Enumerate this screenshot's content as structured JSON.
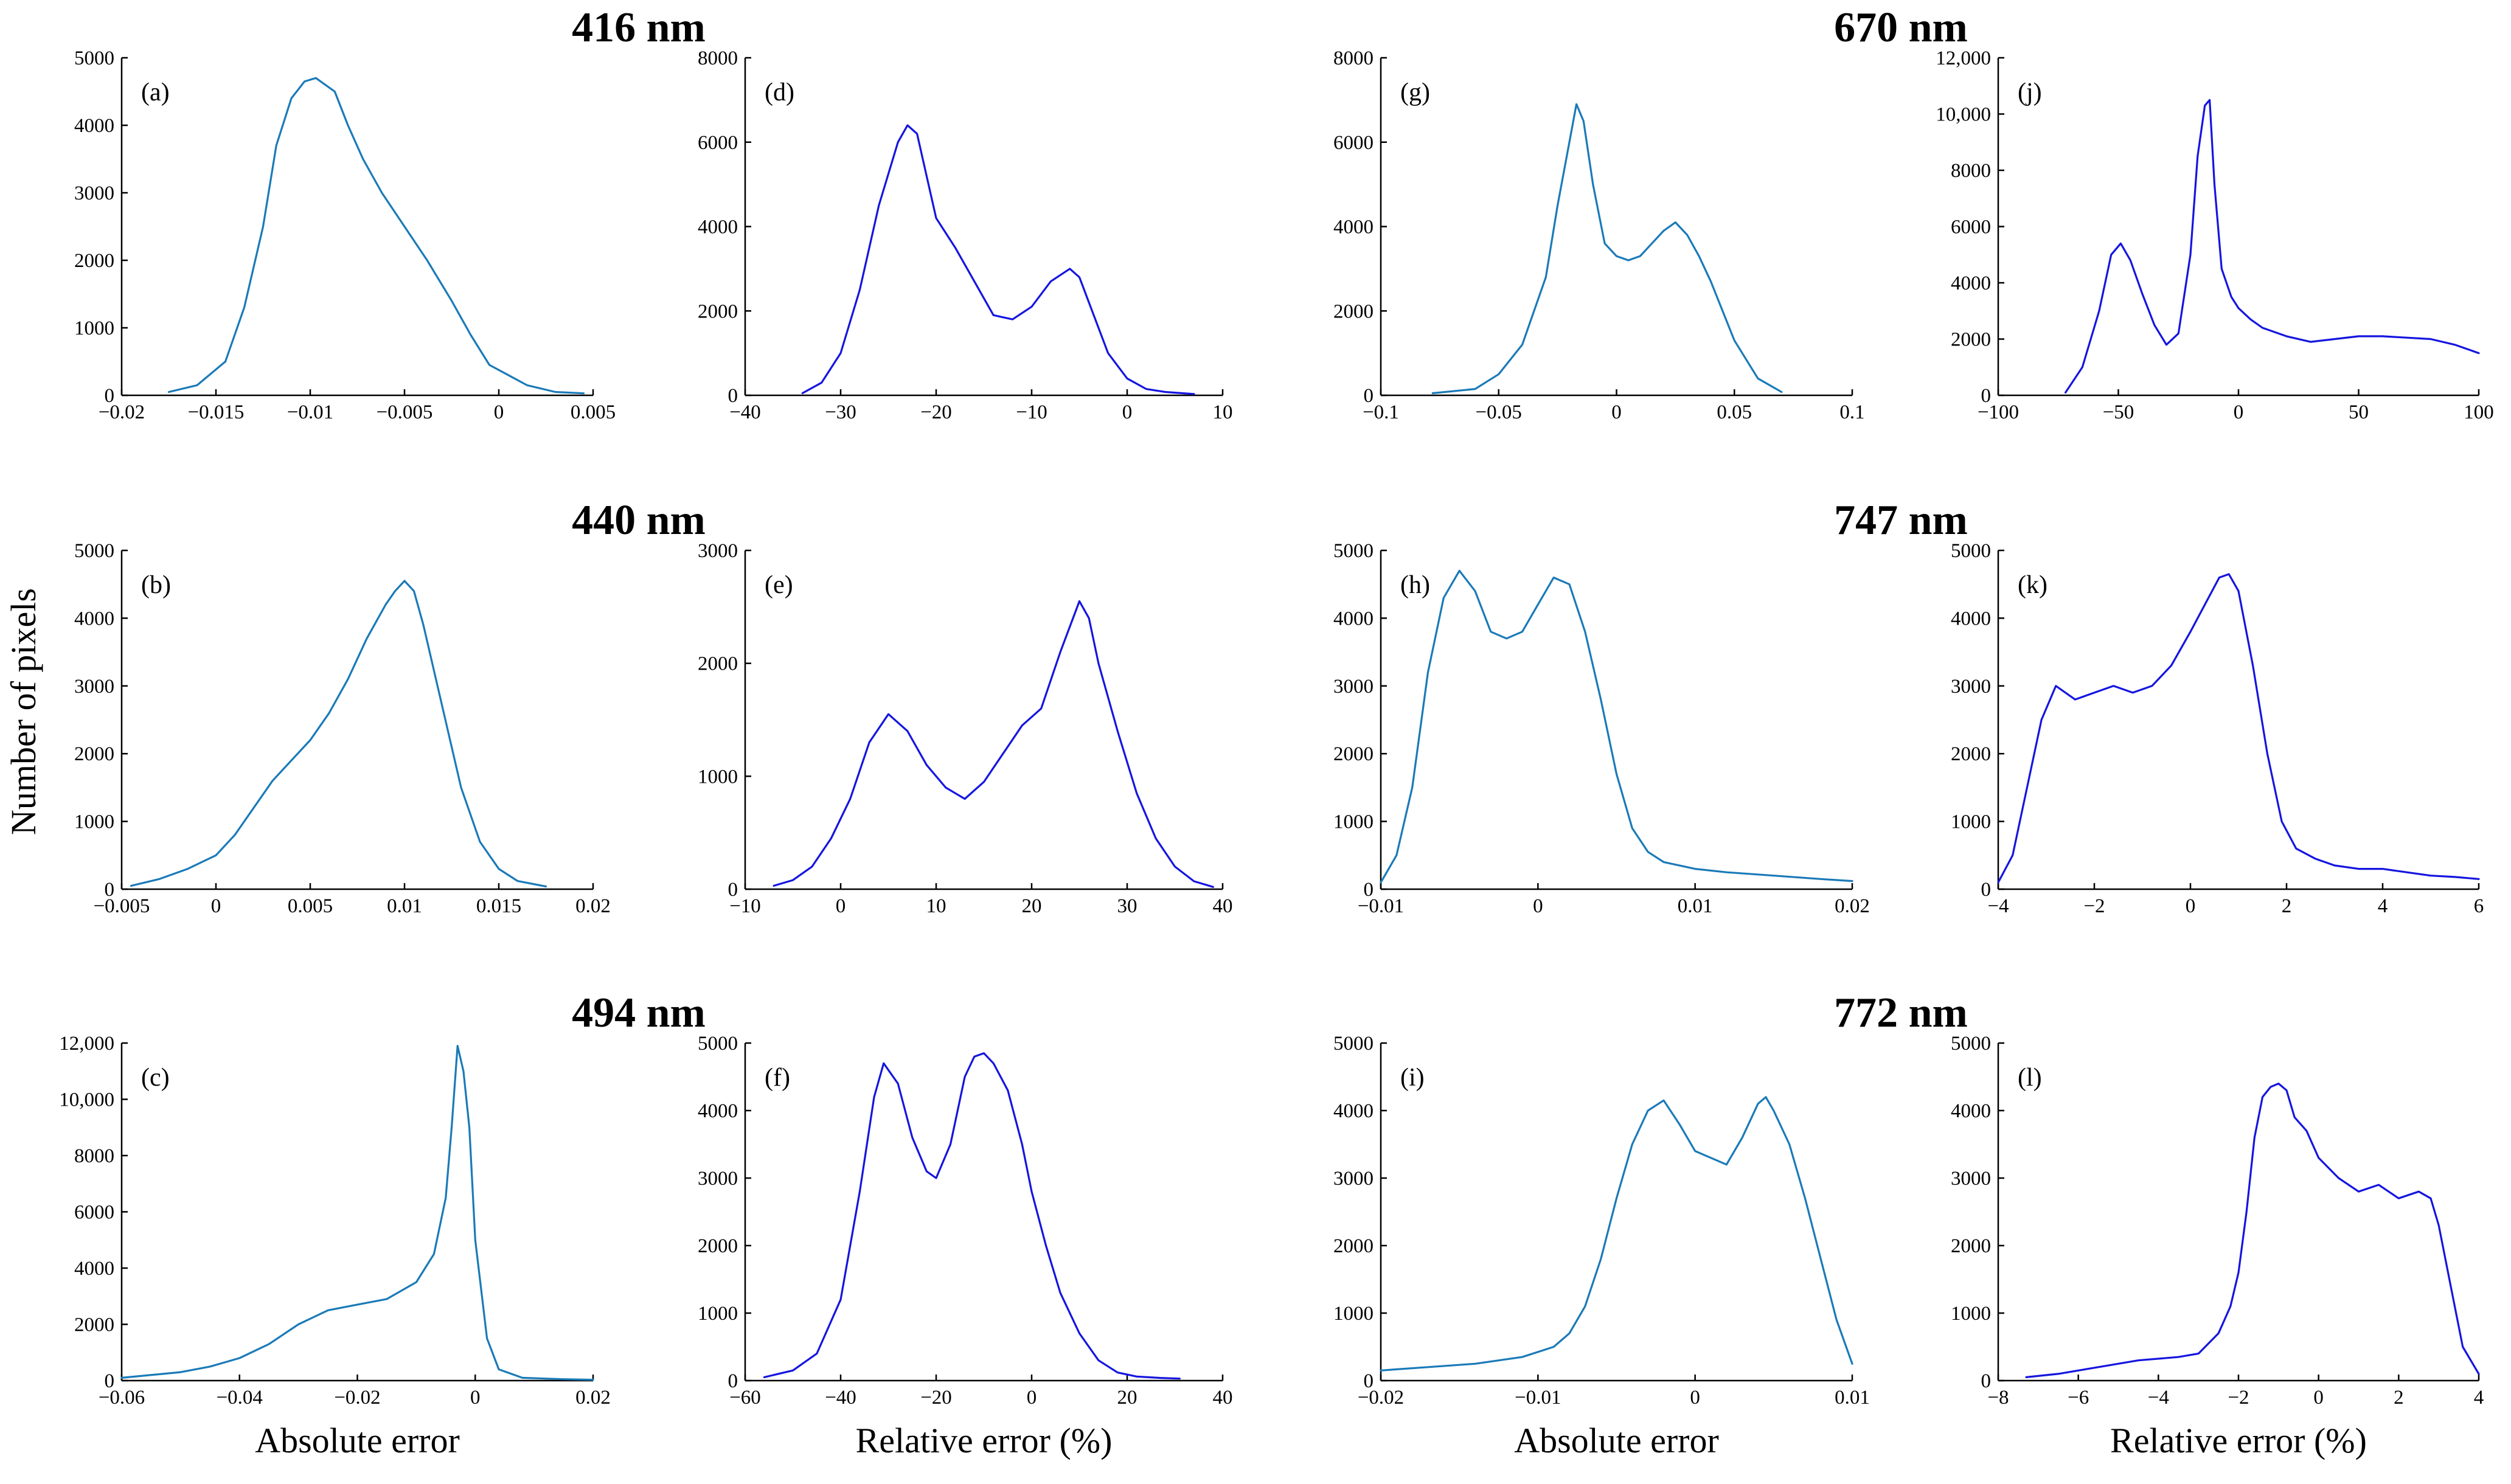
{
  "figure": {
    "ylabel": "Number of pixels",
    "wavelength_titles": [
      "416 nm",
      "440 nm",
      "494 nm",
      "670 nm",
      "747 nm",
      "772 nm"
    ],
    "colors": {
      "absolute": "#1a7ab8",
      "relative": "#1515e0"
    }
  },
  "chart_data": [
    {
      "id": "a",
      "type": "line",
      "label": "(a)",
      "wavelength": "416 nm",
      "xlabel": "",
      "ylabel": "Number of pixels",
      "xlim": [
        -0.02,
        0.005
      ],
      "ylim": [
        0,
        5000
      ],
      "xticks": [
        -0.02,
        -0.015,
        -0.01,
        -0.005,
        0,
        0.005
      ],
      "xticklabels": [
        "−0.02",
        "−0.015",
        "−0.01",
        "−0.005",
        "0",
        "0.005"
      ],
      "yticks": [
        0,
        1000,
        2000,
        3000,
        4000,
        5000
      ],
      "yticklabels": [
        "0",
        "1000",
        "2000",
        "3000",
        "4000",
        "5000"
      ],
      "series": "absolute",
      "x": [
        -0.0175,
        -0.016,
        -0.0145,
        -0.0135,
        -0.0125,
        -0.0118,
        -0.011,
        -0.0103,
        -0.0097,
        -0.0092,
        -0.0087,
        -0.008,
        -0.0072,
        -0.0062,
        -0.005,
        -0.0038,
        -0.0025,
        -0.0015,
        -0.0005,
        0.0005,
        0.0015,
        0.003,
        0.0045
      ],
      "values": [
        50,
        150,
        500,
        1300,
        2500,
        3700,
        4400,
        4650,
        4700,
        4600,
        4500,
        4000,
        3500,
        3000,
        2500,
        2000,
        1400,
        900,
        450,
        300,
        150,
        50,
        30
      ]
    },
    {
      "id": "b",
      "type": "line",
      "label": "(b)",
      "wavelength": "440 nm",
      "xlabel": "",
      "ylabel": "Number of pixels",
      "xlim": [
        -0.005,
        0.02
      ],
      "ylim": [
        0,
        5000
      ],
      "xticks": [
        -0.005,
        0,
        0.005,
        0.01,
        0.015,
        0.02
      ],
      "xticklabels": [
        "−0.005",
        "0",
        "0.005",
        "0.01",
        "0.015",
        "0.02"
      ],
      "yticks": [
        0,
        1000,
        2000,
        3000,
        4000,
        5000
      ],
      "yticklabels": [
        "0",
        "1000",
        "2000",
        "3000",
        "4000",
        "5000"
      ],
      "series": "absolute",
      "x": [
        -0.0045,
        -0.003,
        -0.0015,
        0,
        0.001,
        0.002,
        0.003,
        0.004,
        0.005,
        0.006,
        0.007,
        0.008,
        0.009,
        0.0095,
        0.01,
        0.0105,
        0.011,
        0.012,
        0.013,
        0.014,
        0.015,
        0.016,
        0.0175
      ],
      "values": [
        50,
        150,
        300,
        500,
        800,
        1200,
        1600,
        1900,
        2200,
        2600,
        3100,
        3700,
        4200,
        4400,
        4550,
        4400,
        3900,
        2700,
        1500,
        700,
        300,
        120,
        40
      ]
    },
    {
      "id": "c",
      "type": "line",
      "label": "(c)",
      "wavelength": "494 nm",
      "xlabel": "Absolute error",
      "ylabel": "Number of pixels",
      "xlim": [
        -0.06,
        0.02
      ],
      "ylim": [
        0,
        12000
      ],
      "xticks": [
        -0.06,
        -0.04,
        -0.02,
        0,
        0.02
      ],
      "xticklabels": [
        "−0.06",
        "−0.04",
        "−0.02",
        "0",
        "0.02"
      ],
      "yticks": [
        0,
        2000,
        4000,
        6000,
        8000,
        10000,
        12000
      ],
      "yticklabels": [
        "0",
        "2000",
        "4000",
        "6000",
        "8000",
        "10,000",
        "12,000"
      ],
      "series": "absolute",
      "x": [
        -0.06,
        -0.05,
        -0.045,
        -0.04,
        -0.035,
        -0.03,
        -0.025,
        -0.02,
        -0.015,
        -0.01,
        -0.007,
        -0.005,
        -0.004,
        -0.003,
        -0.002,
        -0.001,
        0,
        0.002,
        0.004,
        0.008,
        0.015,
        0.02
      ],
      "values": [
        100,
        300,
        500,
        800,
        1300,
        2000,
        2500,
        2700,
        2900,
        3500,
        4500,
        6500,
        9000,
        11900,
        11000,
        9000,
        5000,
        1500,
        400,
        100,
        50,
        30
      ]
    },
    {
      "id": "d",
      "type": "line",
      "label": "(d)",
      "wavelength": "416 nm",
      "xlabel": "",
      "ylabel": "",
      "xlim": [
        -40,
        10
      ],
      "ylim": [
        0,
        8000
      ],
      "xticks": [
        -40,
        -30,
        -20,
        -10,
        0,
        10
      ],
      "xticklabels": [
        "−40",
        "−30",
        "−20",
        "−10",
        "0",
        "10"
      ],
      "yticks": [
        0,
        2000,
        4000,
        6000,
        8000
      ],
      "yticklabels": [
        "0",
        "2000",
        "4000",
        "6000",
        "8000"
      ],
      "series": "relative",
      "x": [
        -34,
        -32,
        -30,
        -28,
        -26,
        -24,
        -23,
        -22,
        -21,
        -20,
        -18,
        -16,
        -14,
        -12,
        -10,
        -8,
        -6,
        -5,
        -4,
        -2,
        0,
        2,
        4,
        7
      ],
      "values": [
        50,
        300,
        1000,
        2500,
        4500,
        6000,
        6400,
        6200,
        5200,
        4200,
        3500,
        2700,
        1900,
        1800,
        2100,
        2700,
        3000,
        2800,
        2200,
        1000,
        400,
        150,
        80,
        30
      ]
    },
    {
      "id": "e",
      "type": "line",
      "label": "(e)",
      "wavelength": "440 nm",
      "xlabel": "",
      "ylabel": "",
      "xlim": [
        -10,
        40
      ],
      "ylim": [
        0,
        3000
      ],
      "xticks": [
        -10,
        0,
        10,
        20,
        30,
        40
      ],
      "xticklabels": [
        "−10",
        "0",
        "10",
        "20",
        "30",
        "40"
      ],
      "yticks": [
        0,
        1000,
        2000,
        3000
      ],
      "yticklabels": [
        "0",
        "1000",
        "2000",
        "3000"
      ],
      "series": "relative",
      "x": [
        -7,
        -5,
        -3,
        -1,
        1,
        3,
        5,
        7,
        9,
        11,
        13,
        15,
        17,
        19,
        21,
        23,
        25,
        26,
        27,
        29,
        31,
        33,
        35,
        37,
        39
      ],
      "values": [
        30,
        80,
        200,
        450,
        800,
        1300,
        1550,
        1400,
        1100,
        900,
        800,
        950,
        1200,
        1450,
        1600,
        2100,
        2550,
        2400,
        2000,
        1400,
        850,
        450,
        200,
        70,
        20
      ]
    },
    {
      "id": "f",
      "type": "line",
      "label": "(f)",
      "wavelength": "494 nm",
      "xlabel": "Relative error (%)",
      "ylabel": "",
      "xlim": [
        -60,
        40
      ],
      "ylim": [
        0,
        5000
      ],
      "xticks": [
        -60,
        -40,
        -20,
        0,
        20,
        40
      ],
      "xticklabels": [
        "−60",
        "−40",
        "−20",
        "0",
        "20",
        "40"
      ],
      "yticks": [
        0,
        1000,
        2000,
        3000,
        4000,
        5000
      ],
      "yticklabels": [
        "0",
        "1000",
        "2000",
        "3000",
        "4000",
        "5000"
      ],
      "series": "relative",
      "x": [
        -56,
        -50,
        -45,
        -40,
        -36,
        -33,
        -31,
        -28,
        -25,
        -22,
        -20,
        -17,
        -14,
        -12,
        -10,
        -8,
        -5,
        -2,
        0,
        3,
        6,
        10,
        14,
        18,
        22,
        27,
        31
      ],
      "values": [
        50,
        150,
        400,
        1200,
        2800,
        4200,
        4700,
        4400,
        3600,
        3100,
        3000,
        3500,
        4500,
        4800,
        4850,
        4700,
        4300,
        3500,
        2800,
        2000,
        1300,
        700,
        300,
        120,
        60,
        40,
        30
      ]
    },
    {
      "id": "g",
      "type": "line",
      "label": "(g)",
      "wavelength": "670 nm",
      "xlabel": "",
      "ylabel": "",
      "xlim": [
        -0.1,
        0.1
      ],
      "ylim": [
        0,
        8000
      ],
      "xticks": [
        -0.1,
        -0.05,
        0,
        0.05,
        0.1
      ],
      "xticklabels": [
        "−0.1",
        "−0.05",
        "0",
        "0.05",
        "0.1"
      ],
      "yticks": [
        0,
        2000,
        4000,
        6000,
        8000
      ],
      "yticklabels": [
        "0",
        "2000",
        "4000",
        "6000",
        "8000"
      ],
      "series": "absolute",
      "x": [
        -0.078,
        -0.06,
        -0.05,
        -0.04,
        -0.03,
        -0.025,
        -0.02,
        -0.017,
        -0.014,
        -0.01,
        -0.005,
        0,
        0.005,
        0.01,
        0.015,
        0.02,
        0.025,
        0.03,
        0.035,
        0.04,
        0.045,
        0.05,
        0.06,
        0.07
      ],
      "values": [
        50,
        150,
        500,
        1200,
        2800,
        4500,
        6000,
        6900,
        6500,
        5000,
        3600,
        3300,
        3200,
        3300,
        3600,
        3900,
        4100,
        3800,
        3300,
        2700,
        2000,
        1300,
        400,
        80
      ]
    },
    {
      "id": "h",
      "type": "line",
      "label": "(h)",
      "wavelength": "747 nm",
      "xlabel": "",
      "ylabel": "",
      "xlim": [
        -0.01,
        0.02
      ],
      "ylim": [
        0,
        5000
      ],
      "xticks": [
        -0.01,
        0,
        0.01,
        0.02
      ],
      "xticklabels": [
        "−0.01",
        "0",
        "0.01",
        "0.02"
      ],
      "yticks": [
        0,
        1000,
        2000,
        3000,
        4000,
        5000
      ],
      "yticklabels": [
        "0",
        "1000",
        "2000",
        "3000",
        "4000",
        "5000"
      ],
      "series": "absolute",
      "x": [
        -0.01,
        -0.009,
        -0.008,
        -0.007,
        -0.006,
        -0.005,
        -0.004,
        -0.003,
        -0.002,
        -0.001,
        0,
        0.001,
        0.002,
        0.003,
        0.004,
        0.005,
        0.006,
        0.007,
        0.008,
        0.01,
        0.012,
        0.015,
        0.018,
        0.02
      ],
      "values": [
        100,
        500,
        1500,
        3200,
        4300,
        4700,
        4400,
        3800,
        3700,
        3800,
        4200,
        4600,
        4500,
        3800,
        2800,
        1700,
        900,
        550,
        400,
        300,
        250,
        200,
        150,
        120
      ]
    },
    {
      "id": "i",
      "type": "line",
      "label": "(i)",
      "wavelength": "772 nm",
      "xlabel": "Absolute error",
      "ylabel": "",
      "xlim": [
        -0.02,
        0.01
      ],
      "ylim": [
        0,
        5000
      ],
      "xticks": [
        -0.02,
        -0.01,
        0,
        0.01
      ],
      "xticklabels": [
        "−0.02",
        "−0.01",
        "0",
        "0.01"
      ],
      "yticks": [
        0,
        1000,
        2000,
        3000,
        4000,
        5000
      ],
      "yticklabels": [
        "0",
        "1000",
        "2000",
        "3000",
        "4000",
        "5000"
      ],
      "series": "absolute",
      "x": [
        -0.02,
        -0.017,
        -0.014,
        -0.011,
        -0.009,
        -0.008,
        -0.007,
        -0.006,
        -0.005,
        -0.004,
        -0.003,
        -0.002,
        -0.001,
        0,
        0.001,
        0.002,
        0.003,
        0.004,
        0.0045,
        0.005,
        0.006,
        0.007,
        0.008,
        0.009,
        0.01
      ],
      "values": [
        150,
        200,
        250,
        350,
        500,
        700,
        1100,
        1800,
        2700,
        3500,
        4000,
        4150,
        3800,
        3400,
        3300,
        3200,
        3600,
        4100,
        4200,
        4000,
        3500,
        2700,
        1800,
        900,
        250
      ]
    },
    {
      "id": "j",
      "type": "line",
      "label": "(j)",
      "wavelength": "670 nm",
      "xlabel": "",
      "ylabel": "",
      "xlim": [
        -100,
        100
      ],
      "ylim": [
        0,
        12000
      ],
      "xticks": [
        -100,
        -50,
        0,
        50,
        100
      ],
      "xticklabels": [
        "−100",
        "−50",
        "0",
        "50",
        "100"
      ],
      "yticks": [
        0,
        2000,
        4000,
        6000,
        8000,
        10000,
        12000
      ],
      "yticklabels": [
        "0",
        "2000",
        "4000",
        "6000",
        "8000",
        "10,000",
        "12,000"
      ],
      "series": "relative",
      "x": [
        -72,
        -65,
        -58,
        -53,
        -49,
        -45,
        -40,
        -35,
        -30,
        -25,
        -20,
        -17,
        -14,
        -12,
        -10,
        -7,
        -3,
        0,
        5,
        10,
        20,
        30,
        40,
        50,
        60,
        70,
        80,
        90,
        100
      ],
      "values": [
        100,
        1000,
        3000,
        5000,
        5400,
        4800,
        3600,
        2500,
        1800,
        2200,
        5000,
        8500,
        10300,
        10500,
        7500,
        4500,
        3500,
        3100,
        2700,
        2400,
        2100,
        1900,
        2000,
        2100,
        2100,
        2050,
        2000,
        1800,
        1500
      ]
    },
    {
      "id": "k",
      "type": "line",
      "label": "(k)",
      "wavelength": "747 nm",
      "xlabel": "",
      "ylabel": "",
      "xlim": [
        -4,
        6
      ],
      "ylim": [
        0,
        5000
      ],
      "xticks": [
        -4,
        -2,
        0,
        2,
        4,
        6
      ],
      "xticklabels": [
        "−4",
        "−2",
        "0",
        "2",
        "4",
        "6"
      ],
      "yticks": [
        0,
        1000,
        2000,
        3000,
        4000,
        5000
      ],
      "yticklabels": [
        "0",
        "1000",
        "2000",
        "3000",
        "4000",
        "5000"
      ],
      "series": "relative",
      "x": [
        -4,
        -3.7,
        -3.4,
        -3.1,
        -2.8,
        -2.4,
        -2,
        -1.6,
        -1.2,
        -0.8,
        -0.4,
        0,
        0.3,
        0.6,
        0.8,
        1,
        1.3,
        1.6,
        1.9,
        2.2,
        2.6,
        3,
        3.5,
        4,
        4.5,
        5,
        5.5,
        6
      ],
      "values": [
        100,
        500,
        1500,
        2500,
        3000,
        2800,
        2900,
        3000,
        2900,
        3000,
        3300,
        3800,
        4200,
        4600,
        4650,
        4400,
        3300,
        2000,
        1000,
        600,
        450,
        350,
        300,
        300,
        250,
        200,
        180,
        150
      ]
    },
    {
      "id": "l",
      "type": "line",
      "label": "(l)",
      "wavelength": "772 nm",
      "xlabel": "Relative error (%)",
      "ylabel": "",
      "xlim": [
        -8,
        4
      ],
      "ylim": [
        0,
        5000
      ],
      "xticks": [
        -8,
        -6,
        -4,
        -2,
        0,
        2,
        4
      ],
      "xticklabels": [
        "−8",
        "−6",
        "−4",
        "−2",
        "0",
        "2",
        "4"
      ],
      "yticks": [
        0,
        1000,
        2000,
        3000,
        4000,
        5000
      ],
      "yticklabels": [
        "0",
        "1000",
        "2000",
        "3000",
        "4000",
        "5000"
      ],
      "series": "relative",
      "x": [
        -7.3,
        -6.5,
        -5.5,
        -4.5,
        -3.5,
        -3,
        -2.5,
        -2.2,
        -2,
        -1.8,
        -1.6,
        -1.4,
        -1.2,
        -1,
        -0.8,
        -0.6,
        -0.3,
        0,
        0.5,
        1,
        1.5,
        2,
        2.5,
        2.8,
        3,
        3.3,
        3.6,
        4
      ],
      "values": [
        50,
        100,
        200,
        300,
        350,
        400,
        700,
        1100,
        1600,
        2500,
        3600,
        4200,
        4350,
        4400,
        4300,
        3900,
        3700,
        3300,
        3000,
        2800,
        2900,
        2700,
        2800,
        2700,
        2300,
        1400,
        500,
        100
      ]
    }
  ]
}
